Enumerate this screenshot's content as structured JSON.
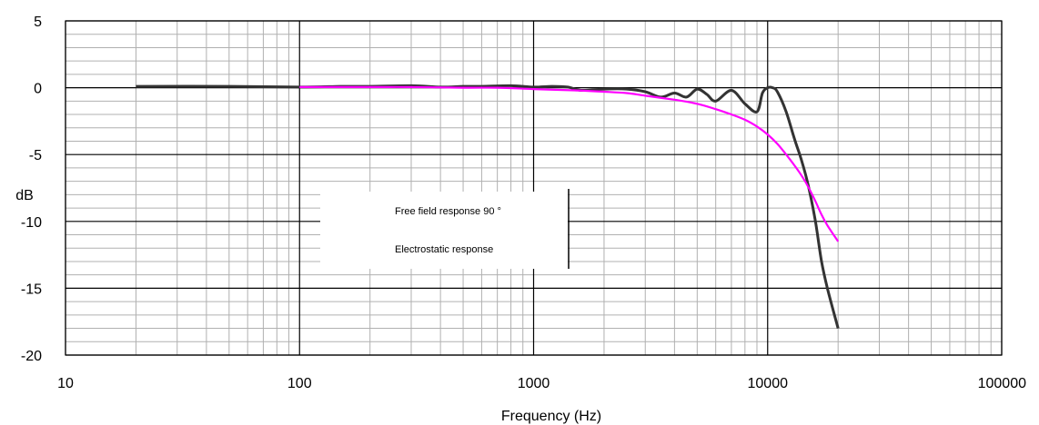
{
  "chart_data": {
    "type": "line",
    "xlabel": "Frequency (Hz)",
    "ylabel": "dB",
    "x_scale": "log",
    "xlim": [
      10,
      100000
    ],
    "ylim": [
      -20,
      5
    ],
    "x_ticks": [
      10,
      100,
      1000,
      10000,
      100000
    ],
    "x_tick_labels": [
      "10",
      "100",
      "1000",
      "10000",
      "100000"
    ],
    "y_ticks": [
      5,
      0,
      -5,
      -10,
      -15,
      -20
    ],
    "y_tick_labels": [
      "5",
      "0",
      "-5",
      "-10",
      "-15",
      "-20"
    ],
    "grid": true,
    "legend_placement": "center-left",
    "series": [
      {
        "name": "Free field response 90 °",
        "color": "#333333",
        "x": [
          20,
          50,
          100,
          150,
          200,
          300,
          400,
          500,
          600,
          800,
          1000,
          1200,
          1400,
          1600,
          2000,
          2500,
          3000,
          3500,
          4000,
          4500,
          5000,
          5500,
          6000,
          7000,
          8000,
          9000,
          9500,
          10000,
          10500,
          11000,
          12000,
          13000,
          14000,
          15000,
          16000,
          17000,
          18000,
          20000
        ],
        "y": [
          0.1,
          0.1,
          0.05,
          0.1,
          0.1,
          0.15,
          0.05,
          0.1,
          0.1,
          0.15,
          0.05,
          0.1,
          0.05,
          -0.2,
          -0.1,
          -0.1,
          -0.3,
          -0.7,
          -0.4,
          -0.7,
          -0.1,
          -0.5,
          -1.0,
          -0.2,
          -1.2,
          -1.8,
          -0.4,
          0.0,
          0.0,
          -0.3,
          -1.8,
          -3.8,
          -5.5,
          -7.5,
          -10.0,
          -13.0,
          -15.0,
          -18.0
        ]
      },
      {
        "name": "Electrostatic response",
        "color": "#ff00ff",
        "x": [
          100,
          200,
          300,
          500,
          700,
          1000,
          1500,
          2000,
          2500,
          3000,
          4000,
          5000,
          6000,
          7000,
          8000,
          9000,
          10000,
          11000,
          12000,
          13000,
          14000,
          15000,
          16000,
          17000,
          18000,
          20000
        ],
        "y": [
          0.05,
          0.05,
          0.05,
          0.0,
          0.0,
          -0.1,
          -0.2,
          -0.3,
          -0.4,
          -0.6,
          -0.9,
          -1.2,
          -1.6,
          -2.0,
          -2.4,
          -2.9,
          -3.5,
          -4.2,
          -5.0,
          -5.8,
          -6.6,
          -7.5,
          -8.5,
          -9.5,
          -10.3,
          -11.5
        ]
      }
    ]
  }
}
